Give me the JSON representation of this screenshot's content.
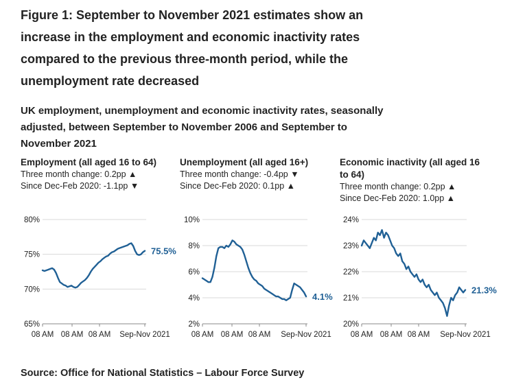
{
  "title": "Figure 1: September to November 2021 estimates show an increase in the employment and economic inactivity rates compared to the previous three-month period, while the unemployment rate decreased",
  "subtitle": "UK employment, unemployment and economic inactivity rates, seasonally adjusted, between September to November 2006 and September to November 2021",
  "source": "Source: Office for National Statistics – Labour Force Survey",
  "colors": {
    "line": "#206095",
    "axis": "#888888",
    "grid": "#d9d9d9",
    "text": "#222222"
  },
  "chart_data": [
    {
      "type": "line",
      "title": "Employment (all aged 16 to 64)",
      "change_line": "Three month change: 0.2pp ▲",
      "since_line": "Since Dec-Feb 2020: -1.1pp ▼",
      "yticks": [
        "80%",
        "75%",
        "70%",
        "65%"
      ],
      "ytick_values": [
        80,
        75,
        70,
        65
      ],
      "xticks": [
        "08 AM",
        "08 AM",
        "08 AM",
        "Sep-Nov 2021"
      ],
      "ylim": [
        65,
        80
      ],
      "end_label": "75.5%",
      "series": [
        {
          "name": "Employment rate",
          "values": [
            72.7,
            72.6,
            72.7,
            72.8,
            72.9,
            73.0,
            72.8,
            72.3,
            71.6,
            71.0,
            70.8,
            70.6,
            70.5,
            70.3,
            70.4,
            70.5,
            70.3,
            70.2,
            70.3,
            70.6,
            70.9,
            71.1,
            71.3,
            71.6,
            72.0,
            72.5,
            72.9,
            73.2,
            73.5,
            73.8,
            74.0,
            74.3,
            74.5,
            74.7,
            74.8,
            75.1,
            75.3,
            75.4,
            75.6,
            75.8,
            75.9,
            76.0,
            76.1,
            76.2,
            76.3,
            76.5,
            76.6,
            76.2,
            75.5,
            75.0,
            74.9,
            75.0,
            75.3,
            75.5
          ]
        }
      ]
    },
    {
      "type": "line",
      "title": "Unemployment (all aged 16+)",
      "change_line": "Three month change: -0.4pp ▼",
      "since_line": "Since Dec-Feb 2020: 0.1pp ▲",
      "yticks": [
        "10%",
        "8%",
        "6%",
        "4%",
        "2%"
      ],
      "ytick_values": [
        10,
        8,
        6,
        4,
        2
      ],
      "xticks": [
        "08 AM",
        "08 AM",
        "08 AM",
        "Sep-Nov 2021"
      ],
      "ylim": [
        2,
        10
      ],
      "end_label": "4.1%",
      "series": [
        {
          "name": "Unemployment rate",
          "values": [
            5.5,
            5.4,
            5.3,
            5.2,
            5.2,
            5.6,
            6.3,
            7.2,
            7.8,
            7.9,
            7.9,
            7.8,
            8.0,
            7.9,
            8.1,
            8.4,
            8.3,
            8.1,
            8.0,
            7.9,
            7.7,
            7.3,
            6.8,
            6.3,
            5.9,
            5.6,
            5.4,
            5.3,
            5.1,
            5.0,
            4.9,
            4.7,
            4.6,
            4.5,
            4.4,
            4.3,
            4.2,
            4.1,
            4.1,
            4.0,
            3.9,
            3.9,
            3.8,
            3.9,
            4.0,
            4.6,
            5.1,
            5.0,
            4.9,
            4.8,
            4.6,
            4.4,
            4.1
          ]
        }
      ]
    },
    {
      "type": "line",
      "title": "Economic inactivity (all aged 16 to 64)",
      "change_line": "Three month change: 0.2pp ▲",
      "since_line": "Since Dec-Feb 2020: 1.0pp ▲",
      "yticks": [
        "24%",
        "23%",
        "22%",
        "21%",
        "20%"
      ],
      "ytick_values": [
        24,
        23,
        22,
        21,
        20
      ],
      "xticks": [
        "08 AM",
        "08 AM",
        "08 AM",
        "Sep-Nov 2021"
      ],
      "ylim": [
        20,
        24
      ],
      "end_label": "21.3%",
      "series": [
        {
          "name": "Economic inactivity rate",
          "values": [
            23.0,
            23.2,
            23.1,
            23.0,
            22.9,
            23.1,
            23.3,
            23.2,
            23.5,
            23.4,
            23.6,
            23.3,
            23.5,
            23.4,
            23.2,
            23.0,
            22.9,
            22.7,
            22.6,
            22.7,
            22.4,
            22.3,
            22.1,
            22.2,
            22.0,
            21.9,
            21.8,
            21.9,
            21.7,
            21.6,
            21.7,
            21.5,
            21.4,
            21.5,
            21.3,
            21.2,
            21.1,
            21.2,
            21.0,
            20.9,
            20.8,
            20.6,
            20.3,
            20.7,
            21.0,
            20.9,
            21.1,
            21.2,
            21.4,
            21.3,
            21.2,
            21.3
          ]
        }
      ]
    }
  ]
}
